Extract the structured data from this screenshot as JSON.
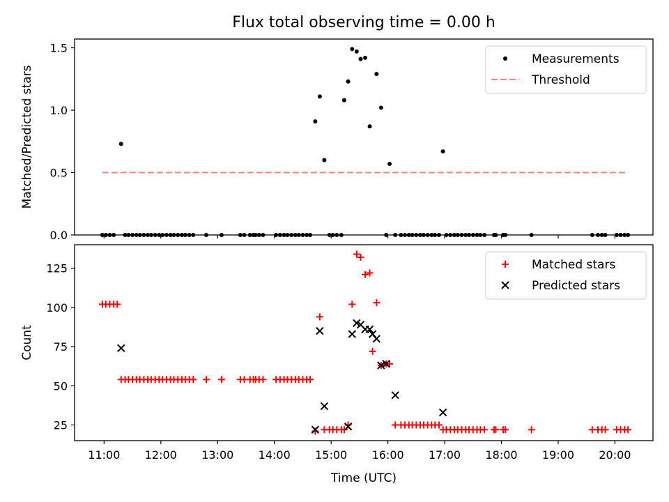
{
  "figure_title": "Flux total observing time = 0.00 h",
  "chart_data": [
    {
      "type": "scatter",
      "ylabel": "Matched/Predicted stars",
      "xlabel": "",
      "xlim": [
        10.48,
        20.67
      ],
      "ylim": [
        0,
        1.57
      ],
      "yticks": [
        0.0,
        0.5,
        1.0,
        1.5
      ],
      "ytick_labels": [
        "0.0",
        "0.5",
        "1.0",
        "1.5"
      ],
      "legend_position": "top-right",
      "series": [
        {
          "name": "Measurements",
          "marker": "dot",
          "color": "#000000",
          "x": [
            10.97,
            11.03,
            11.1,
            11.17,
            11.3,
            11.37,
            11.43,
            11.5,
            11.57,
            11.63,
            11.7,
            11.77,
            11.83,
            11.9,
            11.97,
            12.03,
            12.1,
            12.17,
            12.23,
            12.3,
            12.37,
            12.43,
            12.5,
            12.57,
            12.8,
            13.07,
            13.4,
            13.47,
            13.57,
            13.63,
            13.67,
            13.73,
            13.8,
            14.03,
            14.1,
            14.17,
            14.23,
            14.3,
            14.37,
            14.43,
            14.5,
            14.57,
            14.63,
            14.72,
            14.8,
            14.88,
            14.97,
            15.03,
            15.1,
            15.18,
            15.23,
            15.3,
            15.37,
            15.45,
            15.52,
            15.6,
            15.68,
            15.8,
            15.88,
            15.97,
            16.03,
            16.13,
            16.23,
            16.3,
            16.37,
            16.43,
            16.5,
            16.57,
            16.63,
            16.7,
            16.77,
            16.83,
            16.9,
            16.97,
            17.03,
            17.1,
            17.17,
            17.23,
            17.3,
            17.37,
            17.43,
            17.5,
            17.57,
            17.63,
            17.7,
            17.87,
            17.9,
            18.03,
            18.07,
            18.53,
            19.6,
            19.7,
            19.77,
            19.83,
            20.03,
            20.1,
            20.17,
            20.23
          ],
          "y": [
            0,
            0,
            0,
            0,
            0.73,
            0,
            0,
            0,
            0,
            0,
            0,
            0,
            0,
            0,
            0,
            0,
            0,
            0,
            0,
            0,
            0,
            0,
            0,
            0,
            0,
            0,
            0,
            0,
            0,
            0,
            0,
            0,
            0,
            0,
            0,
            0,
            0,
            0,
            0,
            0,
            0,
            0,
            0,
            0.91,
            1.11,
            0.6,
            0,
            0,
            0,
            0,
            1.08,
            1.23,
            1.49,
            1.47,
            1.41,
            1.42,
            0.87,
            1.29,
            1.02,
            0,
            0.57,
            0,
            0,
            0,
            0,
            0,
            0,
            0,
            0,
            0,
            0,
            0,
            0,
            0.67,
            0,
            0,
            0,
            0,
            0,
            0,
            0,
            0,
            0,
            0,
            0,
            0,
            0,
            0,
            0,
            0,
            0,
            0,
            0,
            0,
            0,
            0,
            0,
            0
          ]
        },
        {
          "name": "Threshold",
          "marker": "dashed-line",
          "color": "#ff7f7f",
          "x": [
            10.97,
            20.23
          ],
          "y": [
            0.5,
            0.5
          ]
        }
      ]
    },
    {
      "type": "scatter",
      "ylabel": "Count",
      "xlabel": "Time (UTC)",
      "xlim": [
        10.48,
        20.67
      ],
      "ylim": [
        15,
        140
      ],
      "yticks": [
        25,
        50,
        75,
        100,
        125
      ],
      "ytick_labels": [
        "25",
        "50",
        "75",
        "100",
        "125"
      ],
      "xticks": [
        11,
        12,
        13,
        14,
        15,
        16,
        17,
        18,
        19,
        20
      ],
      "xtick_labels": [
        "11:00",
        "12:00",
        "13:00",
        "14:00",
        "15:00",
        "16:00",
        "17:00",
        "18:00",
        "19:00",
        "20:00"
      ],
      "legend_position": "top-right",
      "series": [
        {
          "name": "Matched stars",
          "marker": "plus",
          "color": "#ff0000",
          "x": [
            10.97,
            11.03,
            11.1,
            11.17,
            11.23,
            11.3,
            11.37,
            11.43,
            11.5,
            11.57,
            11.63,
            11.7,
            11.77,
            11.83,
            11.9,
            11.97,
            12.03,
            12.1,
            12.17,
            12.23,
            12.3,
            12.37,
            12.43,
            12.5,
            12.57,
            12.8,
            13.07,
            13.4,
            13.47,
            13.57,
            13.63,
            13.67,
            13.73,
            13.8,
            14.03,
            14.1,
            14.17,
            14.23,
            14.3,
            14.37,
            14.43,
            14.5,
            14.57,
            14.63,
            14.72,
            14.8,
            14.88,
            14.97,
            15.03,
            15.1,
            15.18,
            15.23,
            15.3,
            15.37,
            15.45,
            15.52,
            15.6,
            15.68,
            15.73,
            15.8,
            15.88,
            15.97,
            16.03,
            16.13,
            16.23,
            16.3,
            16.37,
            16.43,
            16.5,
            16.57,
            16.63,
            16.7,
            16.77,
            16.83,
            16.9,
            16.97,
            17.03,
            17.1,
            17.17,
            17.23,
            17.3,
            17.37,
            17.43,
            17.5,
            17.57,
            17.63,
            17.7,
            17.87,
            17.9,
            18.03,
            18.07,
            18.53,
            19.6,
            19.7,
            19.77,
            19.83,
            20.03,
            20.1,
            20.17,
            20.23
          ],
          "y": [
            102,
            102,
            102,
            102,
            102,
            54,
            54,
            54,
            54,
            54,
            54,
            54,
            54,
            54,
            54,
            54,
            54,
            54,
            54,
            54,
            54,
            54,
            54,
            54,
            54,
            54,
            54,
            54,
            54,
            54,
            54,
            54,
            54,
            54,
            54,
            54,
            54,
            54,
            54,
            54,
            54,
            54,
            54,
            54,
            21,
            94,
            22,
            22,
            22,
            22,
            22,
            22,
            25,
            102,
            134,
            132,
            121,
            122,
            72,
            103,
            63,
            64,
            64,
            25,
            25,
            25,
            25,
            25,
            25,
            25,
            25,
            25,
            25,
            25,
            25,
            22,
            22,
            22,
            22,
            22,
            22,
            22,
            22,
            22,
            22,
            22,
            22,
            22,
            22,
            22,
            22,
            22,
            22,
            22,
            22,
            22,
            22,
            22,
            22,
            22
          ]
        },
        {
          "name": "Predicted stars",
          "marker": "x",
          "color": "#000000",
          "x": [
            11.3,
            14.72,
            14.8,
            14.88,
            15.3,
            15.37,
            15.45,
            15.52,
            15.6,
            15.68,
            15.73,
            15.8,
            15.88,
            15.97,
            16.13,
            16.97
          ],
          "y": [
            74,
            22,
            85,
            37,
            24,
            83,
            90,
            89,
            86,
            86,
            83,
            80,
            63,
            64,
            44,
            33
          ]
        }
      ]
    }
  ]
}
